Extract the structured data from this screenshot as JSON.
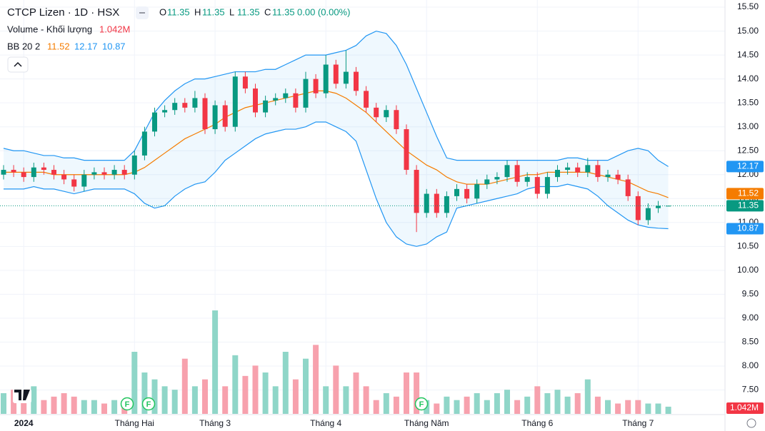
{
  "chart_data": {
    "type": "candlestick",
    "title": "CTCP Lizen · 1D · HSX",
    "ohlc_keys": [
      "O",
      "H",
      "L",
      "C"
    ],
    "change": "0.00 (0.00%)",
    "volume_title": "Volume - Khối lượng",
    "volume_label": "1.042M",
    "indicator": "BB 20 2",
    "up_color": "#089981",
    "down_color": "#f23645",
    "volume_up_color": "#8fd6c8",
    "volume_down_color": "#f7a1ad",
    "open": [
      12.0,
      12.1,
      12.05,
      11.95,
      12.15,
      12.1,
      12.0,
      11.9,
      11.75,
      12.0,
      12.05,
      12.0,
      12.1,
      12.0,
      12.4,
      12.9,
      13.3,
      13.35,
      13.5,
      13.4,
      13.6,
      12.95,
      13.45,
      13.0,
      14.05,
      13.8,
      13.3,
      13.55,
      13.6,
      13.7,
      13.4,
      14.0,
      13.7,
      14.3,
      13.9,
      14.15,
      13.75,
      13.4,
      13.2,
      13.35,
      12.95,
      12.1,
      11.2,
      11.6,
      11.2,
      11.55,
      11.7,
      11.5,
      11.8,
      11.9,
      11.95,
      12.2,
      11.85,
      11.95,
      11.6,
      11.95,
      12.1,
      12.15,
      12.05,
      12.2,
      11.95,
      12.0,
      11.9,
      11.55,
      11.05,
      11.3,
      11.35
    ],
    "high": [
      12.2,
      12.2,
      12.15,
      12.25,
      12.25,
      12.2,
      12.1,
      12.0,
      12.1,
      12.15,
      12.15,
      12.2,
      12.2,
      12.5,
      13.0,
      13.4,
      13.45,
      13.6,
      13.6,
      13.75,
      13.7,
      13.55,
      13.55,
      14.15,
      14.15,
      13.9,
      13.65,
      13.7,
      13.8,
      13.8,
      14.15,
      14.1,
      14.5,
      14.4,
      14.6,
      14.25,
      13.85,
      13.5,
      13.45,
      13.45,
      13.05,
      12.2,
      11.7,
      11.7,
      11.65,
      11.8,
      11.8,
      11.9,
      12.0,
      12.05,
      12.3,
      12.3,
      12.05,
      12.05,
      12.05,
      12.2,
      12.25,
      12.25,
      12.35,
      12.3,
      12.1,
      12.1,
      12.0,
      11.65,
      11.4,
      11.45,
      11.35
    ],
    "low": [
      11.9,
      11.95,
      11.85,
      11.85,
      12.0,
      11.9,
      11.8,
      11.65,
      11.65,
      11.9,
      11.9,
      11.9,
      11.9,
      11.9,
      12.3,
      12.8,
      13.2,
      13.25,
      13.3,
      13.3,
      12.85,
      12.85,
      12.9,
      12.9,
      13.7,
      13.2,
      13.2,
      13.45,
      13.5,
      13.3,
      13.3,
      13.6,
      13.6,
      13.8,
      13.8,
      13.65,
      13.3,
      13.1,
      13.1,
      12.85,
      12.0,
      10.8,
      11.1,
      11.1,
      11.1,
      11.45,
      11.4,
      11.4,
      11.7,
      11.8,
      11.85,
      11.75,
      11.75,
      11.5,
      11.5,
      11.85,
      12.0,
      11.95,
      11.95,
      11.85,
      11.85,
      11.8,
      11.45,
      10.95,
      10.95,
      11.2,
      11.35
    ],
    "close": [
      12.1,
      12.05,
      11.95,
      12.15,
      12.1,
      12.0,
      11.9,
      11.75,
      12.0,
      12.05,
      12.0,
      12.1,
      12.0,
      12.4,
      12.9,
      13.3,
      13.35,
      13.5,
      13.4,
      13.6,
      12.95,
      13.45,
      13.0,
      14.05,
      13.8,
      13.3,
      13.55,
      13.6,
      13.7,
      13.4,
      14.0,
      13.7,
      14.3,
      13.9,
      14.15,
      13.75,
      13.4,
      13.2,
      13.35,
      12.95,
      12.1,
      11.2,
      11.6,
      11.2,
      11.55,
      11.7,
      11.5,
      11.8,
      11.9,
      11.95,
      12.2,
      11.85,
      11.95,
      11.6,
      11.95,
      12.1,
      12.15,
      12.05,
      12.2,
      11.95,
      12.0,
      11.9,
      11.55,
      11.05,
      11.3,
      11.35,
      11.35
    ],
    "volume": [
      3,
      3.5,
      2.5,
      4,
      2,
      2.5,
      3,
      2.5,
      2,
      2,
      1.5,
      2,
      1.5,
      9,
      6,
      5,
      4,
      3.5,
      8,
      4,
      5,
      15,
      4,
      8.5,
      5.5,
      7,
      6,
      4,
      9,
      5,
      8,
      10,
      4,
      7,
      4,
      6,
      4,
      2,
      3,
      2.5,
      6,
      6,
      2,
      1.5,
      2.5,
      2,
      2.5,
      3,
      2,
      3,
      3.5,
      2,
      2.5,
      4,
      3,
      3.5,
      2.5,
      3,
      5,
      2.5,
      2,
      1.5,
      2,
      2,
      1.5,
      1.5,
      1.042
    ],
    "vlim": [
      0,
      15
    ],
    "series": [
      {
        "color": "#f57c00",
        "values": [
          12.05,
          12.05,
          12.05,
          12.05,
          12.05,
          12.0,
          12.0,
          12.0,
          12.0,
          12.0,
          12.0,
          12.0,
          12.0,
          12.05,
          12.15,
          12.3,
          12.45,
          12.6,
          12.75,
          12.85,
          12.95,
          13.05,
          13.2,
          13.3,
          13.4,
          13.45,
          13.5,
          13.55,
          13.6,
          13.65,
          13.7,
          13.75,
          13.75,
          13.7,
          13.6,
          13.45,
          13.3,
          13.1,
          12.9,
          12.7,
          12.5,
          12.35,
          12.2,
          12.1,
          11.95,
          11.85,
          11.8,
          11.8,
          11.8,
          11.85,
          11.9,
          11.95,
          12.0,
          12.0,
          12.05,
          12.05,
          12.05,
          12.05,
          12.05,
          12.0,
          11.95,
          11.9,
          11.85,
          11.75,
          11.65,
          11.6,
          11.52
        ]
      },
      {
        "color": "#2196f3",
        "values": [
          12.55,
          12.5,
          12.5,
          12.45,
          12.4,
          12.4,
          12.35,
          12.35,
          12.3,
          12.3,
          12.3,
          12.3,
          12.3,
          12.5,
          12.9,
          13.3,
          13.55,
          13.75,
          13.9,
          14.0,
          14.0,
          14.05,
          14.1,
          14.15,
          14.15,
          14.15,
          14.2,
          14.2,
          14.3,
          14.4,
          14.5,
          14.5,
          14.5,
          14.55,
          14.6,
          14.7,
          14.9,
          15.0,
          14.95,
          14.7,
          14.3,
          13.8,
          13.3,
          12.8,
          12.35,
          12.3,
          12.3,
          12.3,
          12.3,
          12.3,
          12.3,
          12.3,
          12.3,
          12.3,
          12.3,
          12.3,
          12.35,
          12.35,
          12.3,
          12.3,
          12.3,
          12.4,
          12.5,
          12.55,
          12.5,
          12.3,
          12.17
        ]
      },
      {
        "color": "#2196f3",
        "values": [
          11.7,
          11.7,
          11.7,
          11.75,
          11.7,
          11.7,
          11.65,
          11.6,
          11.65,
          11.7,
          11.7,
          11.7,
          11.7,
          11.6,
          11.4,
          11.3,
          11.35,
          11.55,
          11.7,
          11.8,
          11.85,
          12.05,
          12.3,
          12.45,
          12.6,
          12.75,
          12.85,
          12.9,
          12.95,
          12.95,
          13.0,
          13.1,
          13.1,
          13.0,
          12.9,
          12.7,
          12.1,
          11.5,
          11.0,
          10.7,
          10.55,
          10.5,
          10.55,
          10.7,
          10.8,
          11.3,
          11.35,
          11.4,
          11.45,
          11.5,
          11.55,
          11.6,
          11.7,
          11.75,
          11.75,
          11.75,
          11.8,
          11.75,
          11.7,
          11.55,
          11.35,
          11.2,
          11.05,
          10.95,
          10.9,
          10.88,
          10.87
        ]
      }
    ],
    "ylim": [
      7.0,
      15.65
    ],
    "yticks": [
      {
        "value": 7.5,
        "label": "7.50"
      },
      {
        "value": 8,
        "label": "8.00"
      },
      {
        "value": 8.5,
        "label": "8.50"
      },
      {
        "value": 9,
        "label": "9.00"
      },
      {
        "value": 9.5,
        "label": "9.50"
      },
      {
        "value": 10,
        "label": "10.00"
      },
      {
        "value": 10.5,
        "label": "10.50"
      },
      {
        "value": 11,
        "label": "11.00"
      },
      {
        "value": 11.5,
        "label": "11.50"
      },
      {
        "value": 12,
        "label": "12.00"
      },
      {
        "value": 12.5,
        "label": "12.50"
      },
      {
        "value": 13,
        "label": "13.00"
      },
      {
        "value": 13.5,
        "label": "13.50"
      },
      {
        "value": 14,
        "label": "14.00"
      },
      {
        "value": 14.5,
        "label": "14.50"
      },
      {
        "value": 15,
        "label": "15.00"
      },
      {
        "value": 15.5,
        "label": "15.50"
      }
    ],
    "xticks": [
      {
        "value": 2,
        "label": "2024"
      },
      {
        "value": 13,
        "label": "Tháng Hai"
      },
      {
        "value": 21,
        "label": "Tháng 3"
      },
      {
        "value": 32,
        "label": "Tháng 4"
      },
      {
        "value": 42,
        "label": "Tháng Năm"
      },
      {
        "value": 53,
        "label": "Tháng 6"
      },
      {
        "value": 63,
        "label": "Tháng 7"
      }
    ],
    "grid": true
  }
}
